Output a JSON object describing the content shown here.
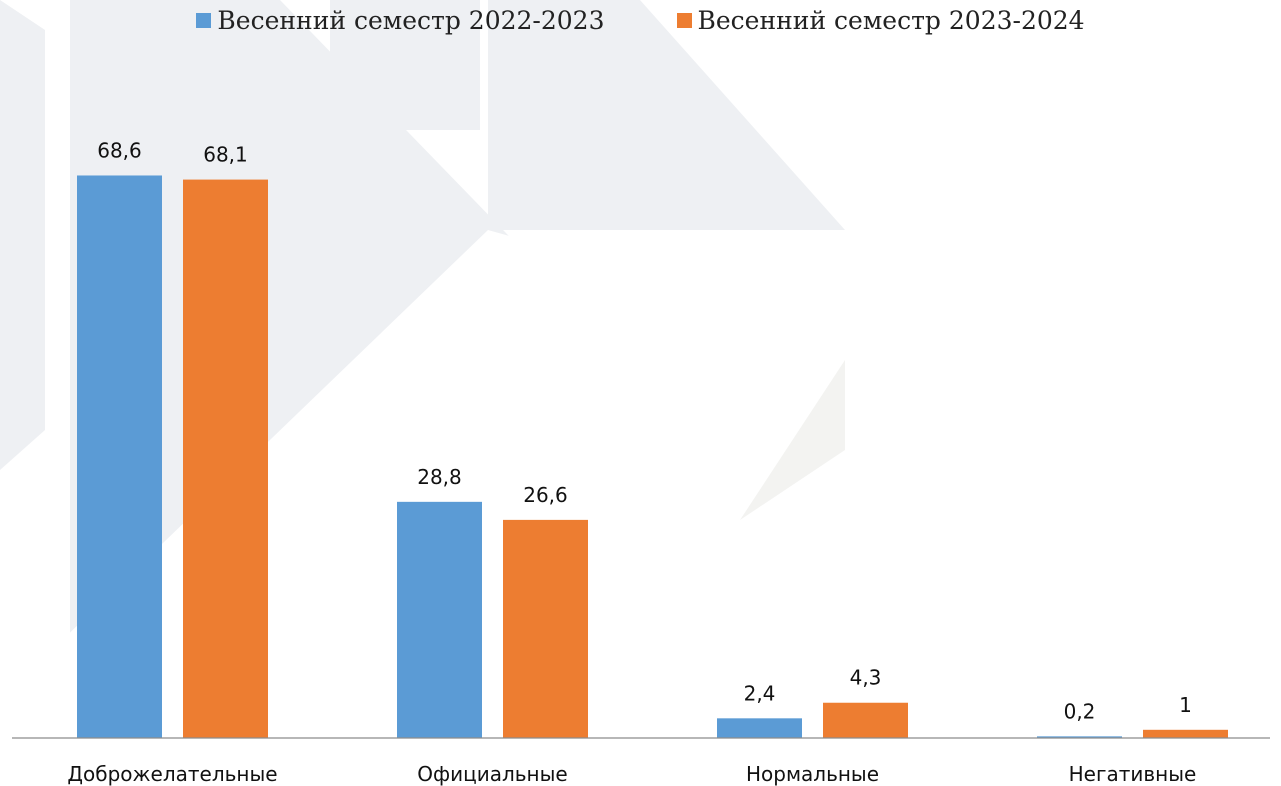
{
  "chart_data": {
    "type": "bar",
    "title": "",
    "xlabel": "",
    "ylabel": "",
    "categories": [
      "Доброжелательные",
      "Официальные",
      "Нормальные",
      "Негативные"
    ],
    "series": [
      {
        "name": "Весенний семестр 2022-2023",
        "color": "#5b9bd5",
        "values": [
          68.6,
          28.8,
          2.4,
          0.2
        ],
        "labels": [
          "68,6",
          "28,8",
          "2,4",
          "0,2"
        ]
      },
      {
        "name": "Весенний семестр 2023-2024",
        "color": "#ed7d31",
        "values": [
          68.1,
          26.6,
          4.3,
          1
        ],
        "labels": [
          "68,1",
          "26,6",
          "4,3",
          "1"
        ]
      }
    ],
    "ylim": [
      0,
      75
    ],
    "grid": false,
    "legend_position": "top-center",
    "data_labels": true
  }
}
